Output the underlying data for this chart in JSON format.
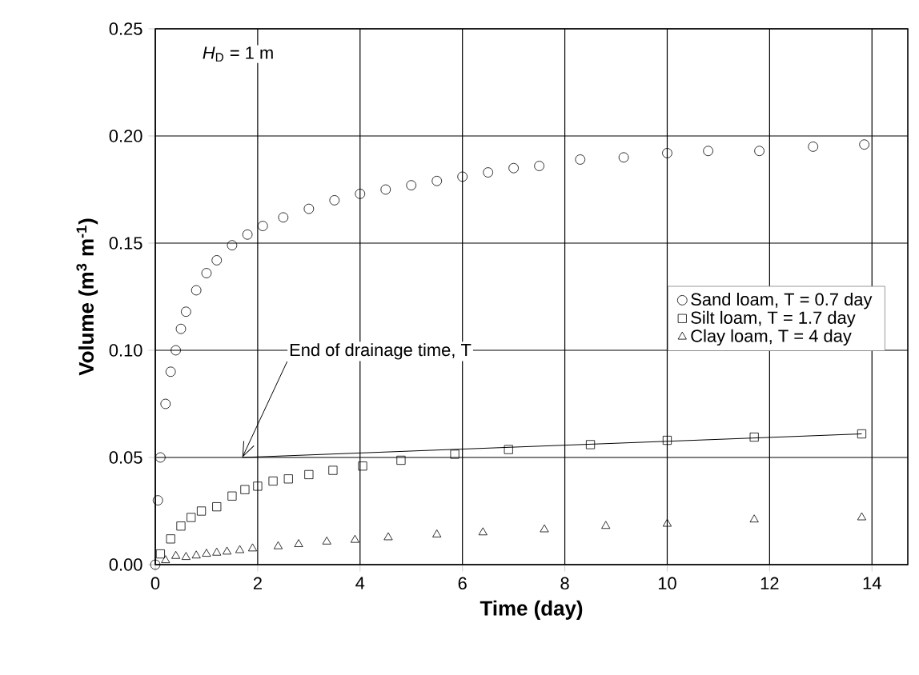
{
  "chart_data": {
    "type": "scatter",
    "xlabel": "Time (day)",
    "ylabel": "Volume (m$^{3}$ m$^{-1}$)",
    "xlim": [
      0,
      14.7
    ],
    "ylim": [
      0,
      0.25
    ],
    "xticks": [
      0,
      2,
      4,
      6,
      8,
      10,
      12,
      14
    ],
    "yticks": [
      {
        "value": 0,
        "label": "0.00"
      },
      {
        "value": 0.05,
        "label": "0.05"
      },
      {
        "value": 0.1,
        "label": "0.10"
      },
      {
        "value": 0.15,
        "label": "0.15"
      },
      {
        "value": 0.2,
        "label": "0.20"
      },
      {
        "value": 0.25,
        "label": "0.25"
      }
    ],
    "grid": true,
    "legend": "right",
    "annotations": [
      "*H*$_{D}$ = 1 m",
      {
        "text": "End of drainage time, T",
        "x": 1.7,
        "y": 0.05
      }
    ],
    "series": [
      {
        "name": "Sand loam, T = 0.7 day",
        "color": "#000000",
        "marker": "circle",
        "x": [
          0,
          0.05,
          0.1,
          0.2,
          0.3,
          0.4,
          0.5,
          0.6,
          0.8,
          1.0,
          1.2,
          1.5,
          1.8,
          2.1,
          2.5,
          3.0,
          3.5,
          4.0,
          4.5,
          5.0,
          5.5,
          6.0,
          6.5,
          7.0,
          7.5,
          8.3,
          9.15,
          10.0,
          10.8,
          11.8,
          12.85,
          13.85
        ],
        "values": [
          0,
          0.03,
          0.05,
          0.075,
          0.09,
          0.1,
          0.11,
          0.118,
          0.128,
          0.136,
          0.142,
          0.149,
          0.154,
          0.158,
          0.162,
          0.166,
          0.17,
          0.173,
          0.175,
          0.177,
          0.179,
          0.181,
          0.183,
          0.185,
          0.186,
          0.189,
          0.19,
          0.192,
          0.193,
          0.193,
          0.195,
          0.196
        ]
      },
      {
        "name": "Silt loam, T = 1.7 day",
        "color": "#000000",
        "marker": "square",
        "x": [
          0.1,
          0.3,
          0.5,
          0.7,
          0.9,
          1.2,
          1.5,
          1.75,
          2.0,
          2.3,
          2.6,
          3.0,
          3.47,
          4.05,
          4.8,
          5.85,
          6.9,
          8.5,
          10.0,
          11.7,
          13.8
        ],
        "values": [
          0.005,
          0.012,
          0.018,
          0.022,
          0.025,
          0.027,
          0.032,
          0.035,
          0.0366,
          0.039,
          0.04,
          0.042,
          0.044,
          0.046,
          0.0487,
          0.0515,
          0.0537,
          0.056,
          0.058,
          0.0595,
          0.061
        ]
      },
      {
        "name": "Clay loam, T = 4 day",
        "color": "#000000",
        "marker": "triangle",
        "x": [
          0.2,
          0.4,
          0.6,
          0.8,
          1.0,
          1.2,
          1.4,
          1.65,
          1.9,
          2.4,
          2.8,
          3.35,
          3.9,
          4.55,
          5.5,
          6.4,
          7.6,
          8.8,
          10.0,
          11.7,
          13.8
        ],
        "values": [
          0.002,
          0.004,
          0.0035,
          0.0042,
          0.005,
          0.0055,
          0.006,
          0.0067,
          0.0075,
          0.0085,
          0.0095,
          0.0107,
          0.0115,
          0.0127,
          0.014,
          0.015,
          0.0164,
          0.018,
          0.019,
          0.021,
          0.022
        ]
      },
      {
        "type": "line",
        "color": "#000000",
        "marker": "none",
        "x": [
          1.7,
          13.8
        ],
        "values": [
          0.05,
          0.061
        ]
      }
    ]
  }
}
